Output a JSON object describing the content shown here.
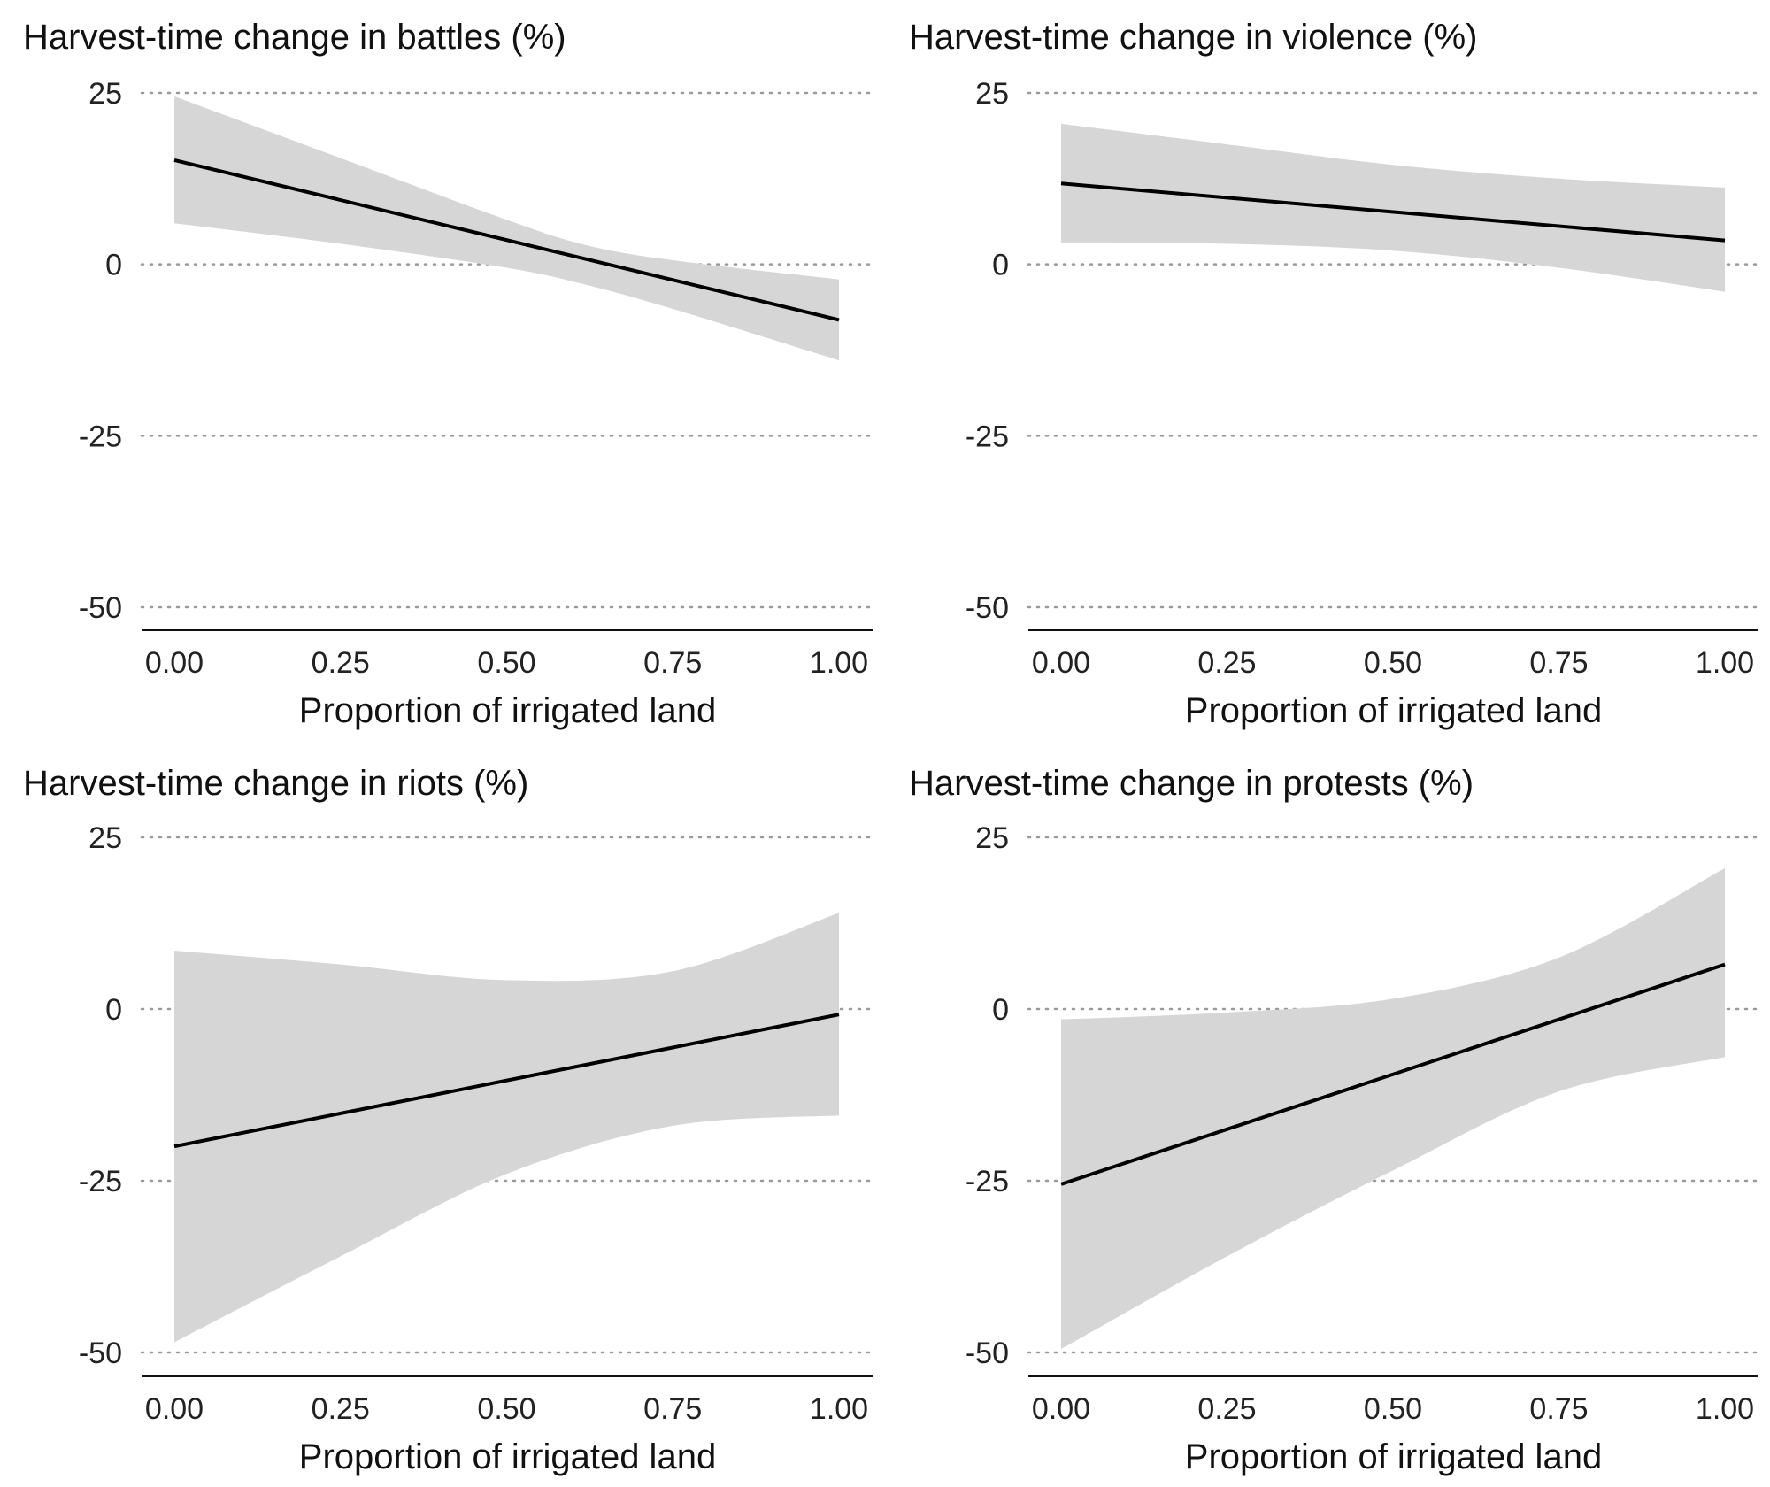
{
  "chart_data": [
    {
      "type": "line",
      "title": "Harvest-time change in battles (%)",
      "xlabel": "Proportion of irrigated land",
      "ylabel": "",
      "xlim": [
        0,
        1
      ],
      "ylim": [
        -50,
        25
      ],
      "x_ticks": [
        0,
        0.25,
        0.5,
        0.75,
        1
      ],
      "x_tick_labels": [
        "0.00",
        "0.25",
        "0.50",
        "0.75",
        "1.00"
      ],
      "y_ticks": [
        25,
        0,
        -25,
        -50
      ],
      "y_tick_labels": [
        "25",
        "0",
        "-25",
        "-50"
      ],
      "grid": "horizontal-dotted",
      "line": {
        "x": [
          0,
          1
        ],
        "y": [
          15.2,
          -8.1
        ]
      },
      "band": {
        "x": [
          0,
          0.25,
          0.5,
          0.62,
          0.75,
          1
        ],
        "upper": [
          24.5,
          15.5,
          6.5,
          2.8,
          0.6,
          -2.2
        ],
        "lower": [
          6,
          3,
          -0.5,
          -3,
          -6.5,
          -14
        ]
      }
    },
    {
      "type": "line",
      "title": "Harvest-time change in violence (%)",
      "xlabel": "Proportion of irrigated land",
      "ylabel": "",
      "xlim": [
        0,
        1
      ],
      "ylim": [
        -50,
        25
      ],
      "x_ticks": [
        0,
        0.25,
        0.5,
        0.75,
        1
      ],
      "x_tick_labels": [
        "0.00",
        "0.25",
        "0.50",
        "0.75",
        "1.00"
      ],
      "y_ticks": [
        25,
        0,
        -25,
        -50
      ],
      "y_tick_labels": [
        "25",
        "0",
        "-25",
        "-50"
      ],
      "grid": "horizontal-dotted",
      "line": {
        "x": [
          0,
          1
        ],
        "y": [
          11.8,
          3.5
        ]
      },
      "band": {
        "x": [
          0,
          0.25,
          0.5,
          0.75,
          1
        ],
        "upper": [
          20.5,
          17.5,
          14.5,
          12.5,
          11.2
        ],
        "lower": [
          3.2,
          3,
          2,
          -0.5,
          -4
        ]
      }
    },
    {
      "type": "line",
      "title": "Harvest-time change in riots (%)",
      "xlabel": "Proportion of irrigated land",
      "ylabel": "",
      "xlim": [
        0,
        1
      ],
      "ylim": [
        -50,
        25
      ],
      "x_ticks": [
        0,
        0.25,
        0.5,
        0.75,
        1
      ],
      "x_tick_labels": [
        "0.00",
        "0.25",
        "0.50",
        "0.75",
        "1.00"
      ],
      "y_ticks": [
        25,
        0,
        -25,
        -50
      ],
      "y_tick_labels": [
        "25",
        "0",
        "-25",
        "-50"
      ],
      "grid": "horizontal-dotted",
      "line": {
        "x": [
          0,
          1
        ],
        "y": [
          -20,
          -0.8
        ]
      },
      "band": {
        "x": [
          0,
          0.25,
          0.5,
          0.75,
          1
        ],
        "upper": [
          8.5,
          6.5,
          4.2,
          5.5,
          14
        ],
        "lower": [
          -48.5,
          -36,
          -24,
          -17,
          -15.5
        ]
      }
    },
    {
      "type": "line",
      "title": "Harvest-time change in protests (%)",
      "xlabel": "Proportion of irrigated land",
      "ylabel": "",
      "xlim": [
        0,
        1
      ],
      "ylim": [
        -50,
        25
      ],
      "x_ticks": [
        0,
        0.25,
        0.5,
        0.75,
        1
      ],
      "x_tick_labels": [
        "0.00",
        "0.25",
        "0.50",
        "0.75",
        "1.00"
      ],
      "y_ticks": [
        25,
        0,
        -25,
        -50
      ],
      "y_tick_labels": [
        "25",
        "0",
        "-25",
        "-50"
      ],
      "grid": "horizontal-dotted",
      "line": {
        "x": [
          0,
          1
        ],
        "y": [
          -25.5,
          6.5
        ]
      },
      "band": {
        "x": [
          0,
          0.25,
          0.5,
          0.75,
          1
        ],
        "upper": [
          -1.5,
          -0.5,
          1.5,
          7.5,
          20.5
        ],
        "lower": [
          -49.5,
          -36,
          -23.5,
          -12,
          -7
        ]
      }
    }
  ],
  "colors": {
    "band": "#d6d6d6",
    "line": "#000000",
    "grid": "#9a9a9a",
    "axis": "#111111",
    "text": "#111111"
  }
}
